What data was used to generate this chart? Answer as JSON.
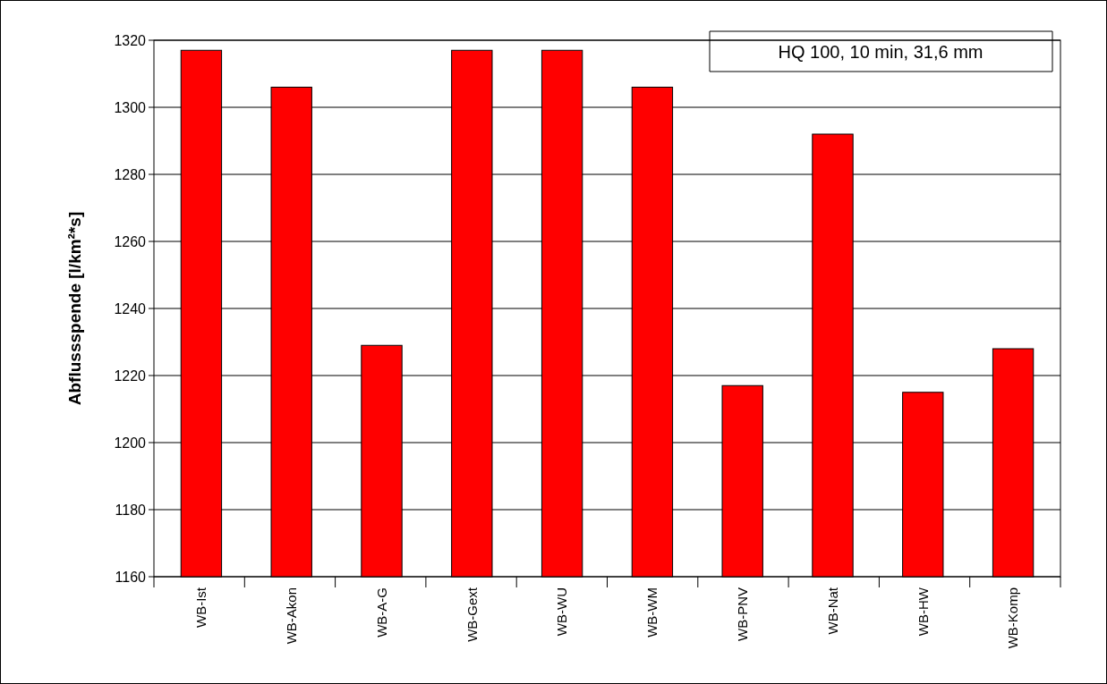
{
  "chart_data": {
    "type": "bar",
    "ylabel": "Abflussspende [l/km²*s]",
    "categories": [
      "WB-Ist",
      "WB-Akon",
      "WB-A-G",
      "WB-Gext",
      "WB-WU",
      "WB-WM",
      "WB-PNV",
      "WB-Nat",
      "WB-HW",
      "WB-Komp"
    ],
    "series": [
      {
        "color": "#ff0000",
        "values": [
          1317,
          1306,
          1229,
          1317,
          1317,
          1306,
          1217,
          1292,
          1215,
          1228
        ]
      }
    ],
    "ylim": [
      1160,
      1320
    ],
    "yticks": [
      1160,
      1180,
      1200,
      1220,
      1240,
      1260,
      1280,
      1300,
      1320
    ],
    "grid": "y",
    "annotations": [
      "HQ 100, 10 min, 31,6 mm"
    ]
  }
}
